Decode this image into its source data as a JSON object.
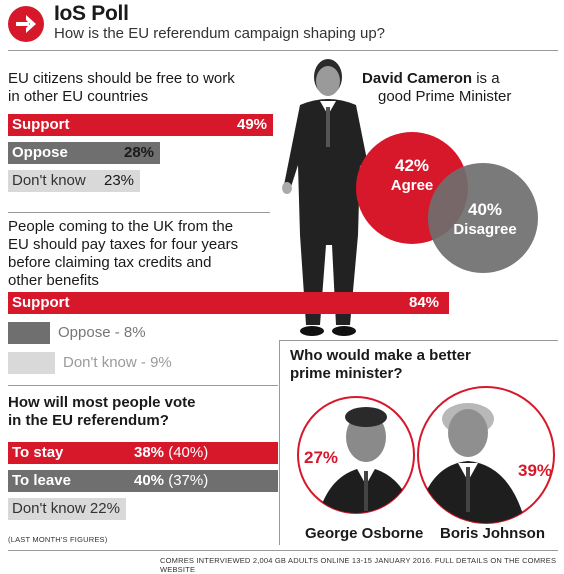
{
  "header": {
    "title": "IoS Poll",
    "subtitle": "How is the EU referendum campaign shaping up?"
  },
  "colors": {
    "red": "#d6182a",
    "dark": "#6f6f6f",
    "light": "#d9d9d9"
  },
  "chart_data": [
    {
      "type": "bar",
      "title": "EU citizens should be free to work in other EU countries",
      "title_lines": [
        "EU citizens should be free to work",
        "in other EU countries"
      ],
      "categories": [
        "Support",
        "Oppose",
        "Don't know"
      ],
      "values": [
        49,
        28,
        23
      ],
      "value_labels": [
        "49%",
        "28%",
        "23%"
      ]
    },
    {
      "type": "pie",
      "title_bold": "David Cameron",
      "title_rest": " is a",
      "title_line2": "good Prime Minister",
      "categories": [
        "Agree",
        "Disagree"
      ],
      "values": [
        42,
        40
      ],
      "value_labels": [
        "42%",
        "40%"
      ]
    },
    {
      "type": "bar",
      "title": "People coming to the UK from the EU should pay taxes for four years before claiming tax credits and other benefits",
      "title_lines": [
        "People coming to the UK from the",
        "EU should pay taxes for four years",
        "before claiming tax credits and",
        "other benefits"
      ],
      "categories": [
        "Support",
        "Oppose",
        "Don't know"
      ],
      "values": [
        84,
        8,
        9
      ],
      "value_labels": [
        "84%",
        "Oppose - 8%",
        "Don't know - 9%"
      ]
    },
    {
      "type": "bar",
      "title": "How will most people vote in the EU referendum?",
      "title_lines": [
        "How will most people vote",
        "in the EU referendum?"
      ],
      "categories": [
        "To stay",
        "To leave",
        "Don't know"
      ],
      "values": [
        38,
        40,
        22
      ],
      "previous_values": [
        40,
        37,
        null
      ],
      "value_labels": [
        "38%",
        "40%",
        "22%"
      ],
      "previous_labels": [
        " (40%)",
        " (37%)",
        ""
      ],
      "footnote": "(LAST MONTH'S FIGURES)"
    },
    {
      "type": "bar",
      "title": "Who would make a better prime minister?",
      "title_lines": [
        "Who would make a better",
        "prime minister?"
      ],
      "categories": [
        "George Osborne",
        "Boris Johnson"
      ],
      "values": [
        27,
        39
      ],
      "value_labels": [
        "27%",
        "39%"
      ]
    }
  ],
  "source": "COMRES INTERVIEWED 2,004 GB ADULTS ONLINE 13-15 JANUARY 2016. FULL DETAILS ON THE COMRES WEBSITE"
}
